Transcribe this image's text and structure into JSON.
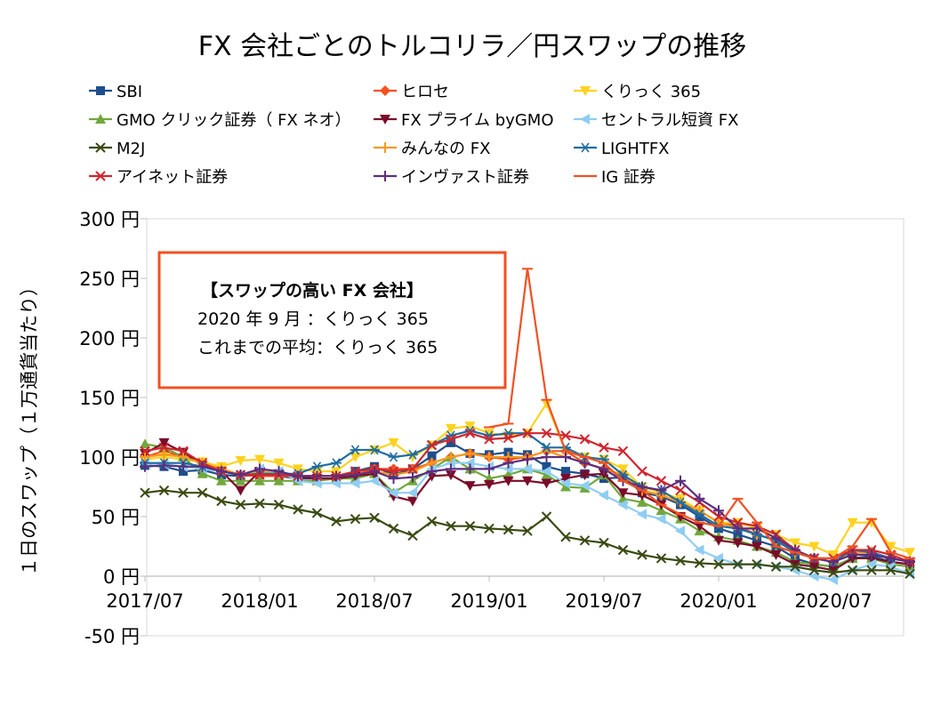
{
  "chart_data": {
    "type": "line",
    "title": "FX 会社ごとのトルコリラ／円スワップの推移",
    "xlabel": "",
    "ylabel": "１日のスワップ（１万通貨当たり）",
    "ylim": [
      -50,
      300
    ],
    "y_ticks": [
      "300 円",
      "250 円",
      "200 円",
      "150 円",
      "100 円",
      "50 円",
      "0 円",
      "-50 円"
    ],
    "x_ticks": [
      "2017/07",
      "2018/01",
      "2018/07",
      "2019/01",
      "2019/07",
      "2020/01",
      "2020/07"
    ],
    "x_start": "2017/07",
    "x_end": "2020/09",
    "grid": "none",
    "legend": "top",
    "annotation": {
      "heading": "【スワップの高い FX 会社】",
      "line1": "2020 年 9 月 ：くりっく 365",
      "line2": "これまでの平均：くりっく 365"
    },
    "series": [
      {
        "name": "SBI",
        "color": "#1F4E8C",
        "marker": "square",
        "values": [
          93,
          92,
          88,
          89,
          85,
          84,
          85,
          84,
          82,
          82,
          82,
          88,
          92,
          85,
          90,
          101,
          112,
          103,
          102,
          104,
          102,
          92,
          88,
          86,
          82,
          83,
          70,
          67,
          60,
          50,
          40,
          35,
          30,
          25,
          15,
          10,
          8,
          15,
          17,
          12,
          10
        ]
      },
      {
        "name": "ヒロセ",
        "color": "#F4511E",
        "marker": "diamond",
        "values": [
          100,
          105,
          100,
          95,
          90,
          85,
          84,
          84,
          84,
          84,
          84,
          85,
          90,
          90,
          90,
          95,
          100,
          103,
          100,
          98,
          100,
          105,
          105,
          95,
          90,
          85,
          72,
          68,
          62,
          55,
          45,
          42,
          35,
          30,
          20,
          15,
          12,
          20,
          20,
          15,
          12
        ]
      },
      {
        "name": "くりっく 365",
        "color": "#FFD21F",
        "marker": "triangle-down",
        "values": [
          98,
          100,
          98,
          96,
          92,
          97,
          98,
          95,
          90,
          88,
          88,
          100,
          106,
          112,
          100,
          110,
          124,
          126,
          120,
          118,
          120,
          145,
          105,
          100,
          98,
          90,
          75,
          70,
          65,
          55,
          45,
          45,
          40,
          35,
          28,
          25,
          18,
          45,
          45,
          25,
          20
        ]
      },
      {
        "name": "GMO クリック証券（ FX ネオ）",
        "color": "#70A83C",
        "marker": "triangle",
        "values": [
          111,
          108,
          100,
          86,
          80,
          80,
          80,
          80,
          80,
          80,
          82,
          82,
          86,
          70,
          80,
          90,
          100,
          90,
          82,
          85,
          90,
          85,
          75,
          74,
          85,
          65,
          62,
          55,
          48,
          38,
          33,
          30,
          25,
          20,
          12,
          10,
          8,
          15,
          15,
          10,
          8
        ]
      },
      {
        "name": "FX プライム byGMO",
        "color": "#7B0B2A",
        "marker": "triangle-down",
        "values": [
          103,
          112,
          104,
          93,
          88,
          72,
          88,
          86,
          83,
          82,
          82,
          84,
          86,
          67,
          63,
          84,
          85,
          76,
          77,
          80,
          80,
          78,
          82,
          85,
          86,
          70,
          68,
          60,
          50,
          42,
          30,
          28,
          25,
          18,
          10,
          8,
          5,
          15,
          15,
          12,
          10
        ]
      },
      {
        "name": "セントラル短資 FX",
        "color": "#8FCDF2",
        "marker": "triangle-left",
        "values": [
          95,
          94,
          92,
          90,
          88,
          85,
          90,
          88,
          80,
          78,
          78,
          78,
          80,
          70,
          70,
          90,
          95,
          95,
          92,
          90,
          90,
          88,
          78,
          76,
          68,
          60,
          52,
          48,
          38,
          22,
          15,
          10,
          10,
          8,
          5,
          0,
          -3,
          5,
          10,
          8,
          2
        ]
      },
      {
        "name": "M2J",
        "color": "#3A4A12",
        "marker": "x",
        "values": [
          70,
          72,
          70,
          70,
          63,
          60,
          61,
          60,
          56,
          53,
          46,
          48,
          49,
          40,
          34,
          46,
          42,
          42,
          40,
          39,
          38,
          50,
          33,
          30,
          28,
          22,
          18,
          15,
          13,
          11,
          10,
          10,
          10,
          8,
          8,
          5,
          3,
          5,
          5,
          5,
          2
        ]
      },
      {
        "name": "みんなの FX",
        "color": "#F59A1F",
        "marker": "plus",
        "values": [
          100,
          102,
          100,
          95,
          90,
          85,
          88,
          86,
          84,
          84,
          84,
          85,
          88,
          85,
          88,
          95,
          100,
          103,
          100,
          100,
          100,
          105,
          100,
          95,
          90,
          85,
          72,
          68,
          62,
          55,
          45,
          40,
          35,
          30,
          20,
          15,
          12,
          20,
          20,
          15,
          12
        ]
      },
      {
        "name": "LIGHTFX",
        "color": "#1E6DA0",
        "marker": "asterisk",
        "values": [
          95,
          95,
          95,
          92,
          88,
          85,
          86,
          86,
          86,
          92,
          95,
          106,
          106,
          100,
          102,
          110,
          118,
          122,
          118,
          120,
          120,
          108,
          108,
          100,
          98,
          85,
          75,
          72,
          62,
          52,
          42,
          40,
          35,
          30,
          20,
          15,
          12,
          22,
          20,
          15,
          12
        ]
      },
      {
        "name": "アイネット証券",
        "color": "#D0262E",
        "marker": "x",
        "values": [
          105,
          108,
          105,
          95,
          88,
          85,
          85,
          85,
          84,
          84,
          84,
          88,
          90,
          88,
          90,
          110,
          115,
          120,
          115,
          116,
          120,
          120,
          118,
          115,
          108,
          105,
          88,
          80,
          72,
          62,
          50,
          45,
          42,
          35,
          22,
          15,
          15,
          22,
          22,
          18,
          12
        ]
      },
      {
        "name": "インヴァスト証券",
        "color": "#5C2E7E",
        "marker": "plus",
        "values": [
          92,
          93,
          92,
          92,
          88,
          85,
          90,
          88,
          84,
          84,
          84,
          85,
          88,
          82,
          83,
          88,
          90,
          90,
          90,
          95,
          98,
          100,
          100,
          95,
          90,
          80,
          75,
          72,
          80,
          65,
          55,
          40,
          40,
          32,
          22,
          15,
          12,
          18,
          18,
          15,
          12
        ]
      },
      {
        "name": "IG 証券",
        "color": "#F25022",
        "marker": "dash",
        "values": [
          null,
          null,
          null,
          null,
          null,
          null,
          null,
          null,
          null,
          null,
          null,
          null,
          null,
          null,
          null,
          null,
          null,
          null,
          125,
          128,
          258,
          148,
          105,
          100,
          95,
          80,
          72,
          60,
          52,
          45,
          42,
          65,
          45,
          25,
          20,
          15,
          15,
          25,
          48,
          20,
          15
        ]
      }
    ]
  }
}
